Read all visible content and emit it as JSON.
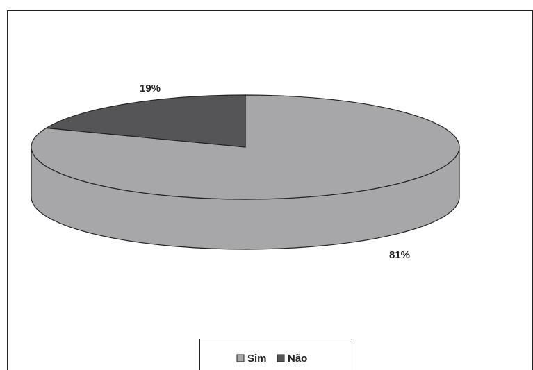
{
  "chart_data": {
    "type": "pie",
    "categories": [
      "Sim",
      "Não"
    ],
    "series": [
      {
        "values": [
          81,
          19
        ],
        "value_labels": [
          "81%",
          "19%"
        ],
        "colors": [
          "#a7a7a9",
          "#555557"
        ]
      }
    ],
    "legend": "bottom"
  }
}
